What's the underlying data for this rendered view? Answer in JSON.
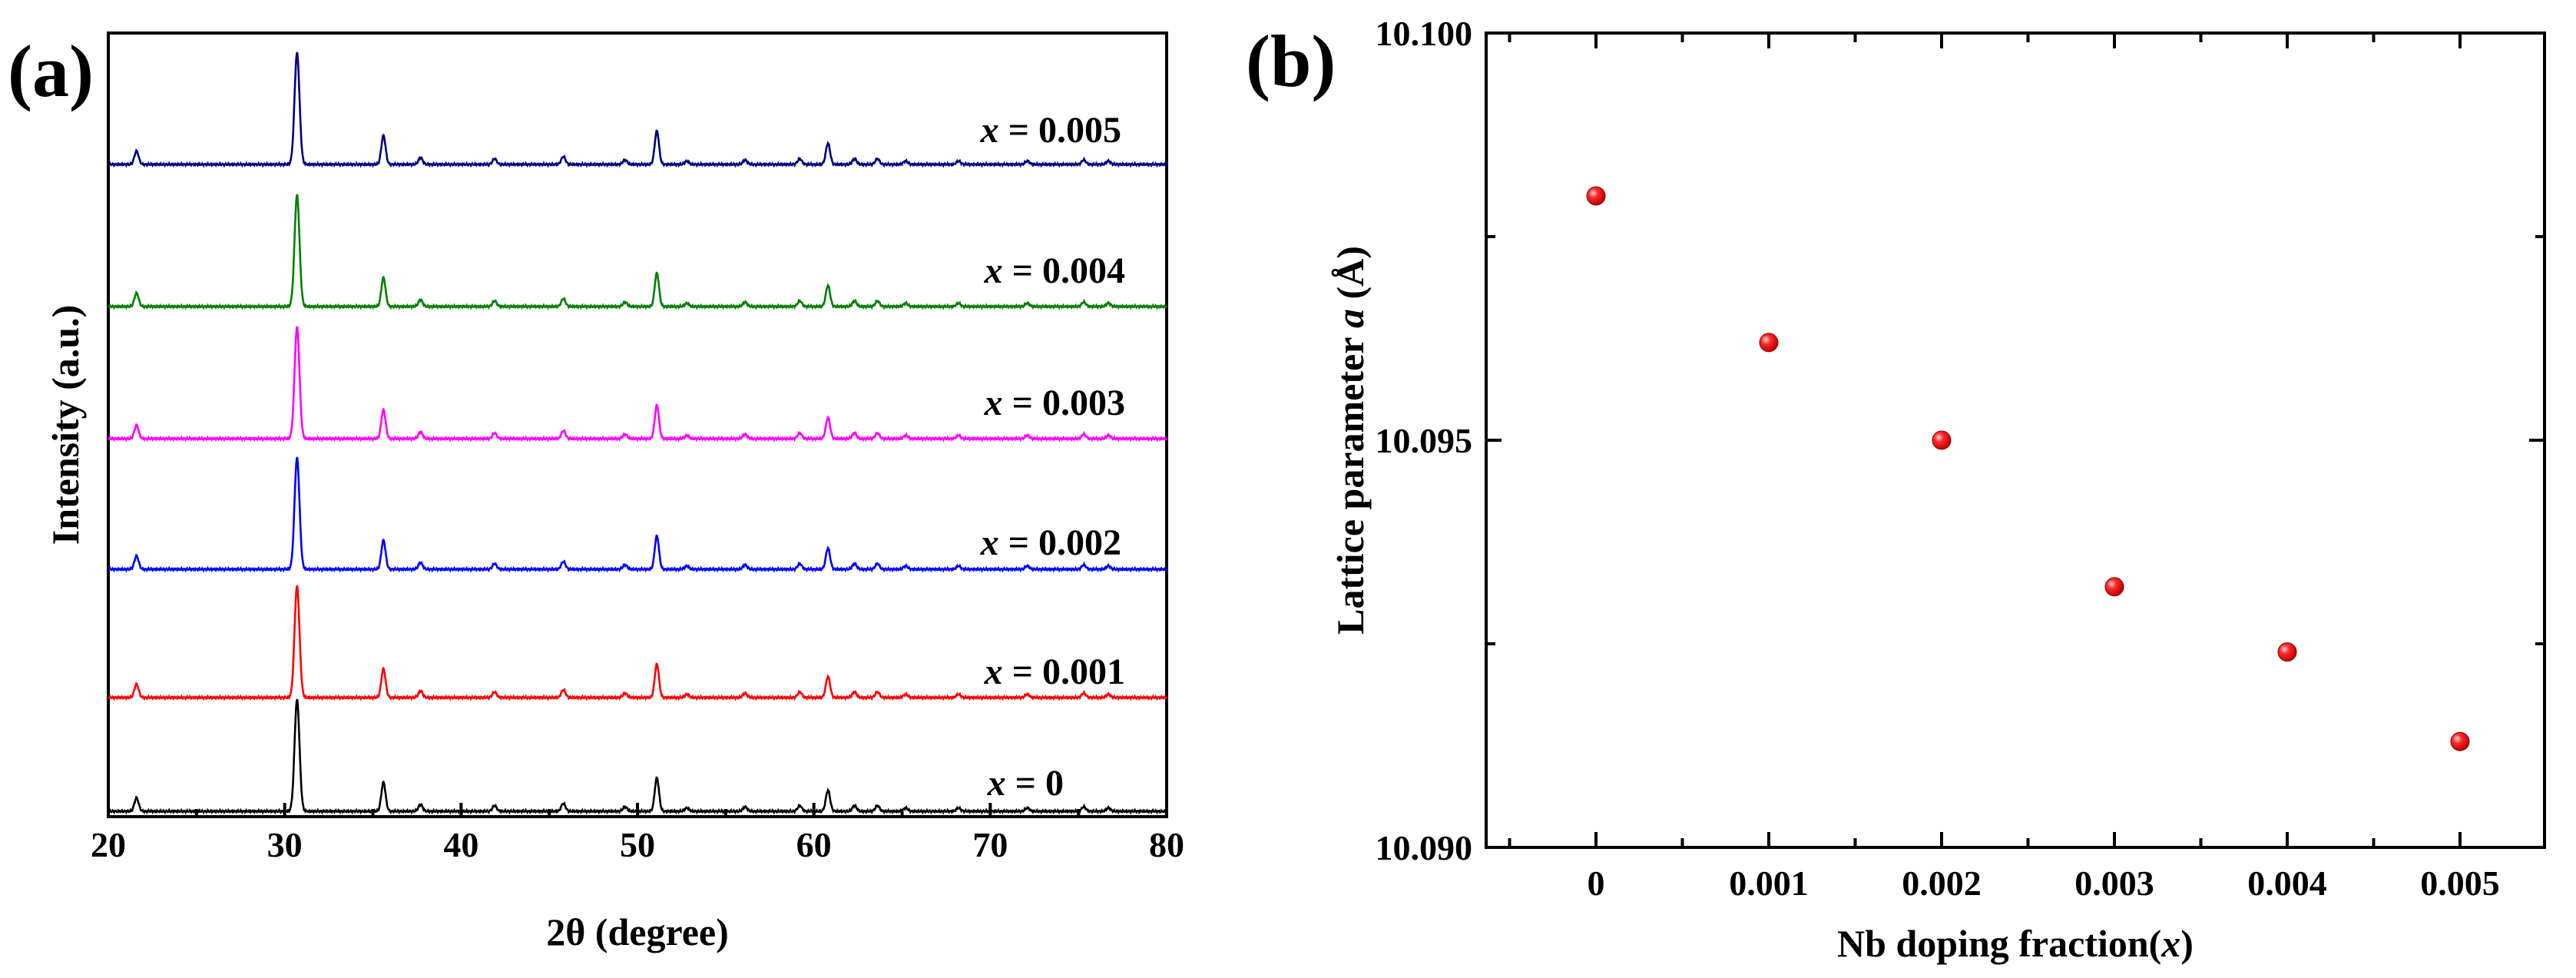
{
  "chart_data": [
    {
      "panel": "(a)",
      "type": "line",
      "xlabel": "2θ (degree)",
      "ylabel": "Intensity (a.u.)",
      "xlim": [
        20,
        80
      ],
      "xticks": [
        "20",
        "30",
        "40",
        "50",
        "60",
        "70",
        "80"
      ],
      "peaks": [
        {
          "x": 21.6,
          "rel": 0.12
        },
        {
          "x": 30.7,
          "rel": 1.0
        },
        {
          "x": 35.6,
          "rel": 0.26
        },
        {
          "x": 37.7,
          "rel": 0.06
        },
        {
          "x": 41.9,
          "rel": 0.05
        },
        {
          "x": 45.8,
          "rel": 0.07
        },
        {
          "x": 49.3,
          "rel": 0.04
        },
        {
          "x": 51.1,
          "rel": 0.3
        },
        {
          "x": 52.8,
          "rel": 0.03
        },
        {
          "x": 56.1,
          "rel": 0.04
        },
        {
          "x": 59.2,
          "rel": 0.05
        },
        {
          "x": 60.8,
          "rel": 0.19
        },
        {
          "x": 62.3,
          "rel": 0.05
        },
        {
          "x": 63.6,
          "rel": 0.05
        },
        {
          "x": 65.2,
          "rel": 0.03
        },
        {
          "x": 68.2,
          "rel": 0.03
        },
        {
          "x": 72.1,
          "rel": 0.03
        },
        {
          "x": 75.3,
          "rel": 0.04
        },
        {
          "x": 76.7,
          "rel": 0.03
        }
      ],
      "series": [
        {
          "name": "x = 0",
          "label_prefix": "x",
          "label_value": "= 0",
          "color": "#000000",
          "baseline_offset": 0,
          "scale": 1.0
        },
        {
          "name": "x = 0.001",
          "label_prefix": "x",
          "label_value": "= 0.001",
          "color": "#ff0000",
          "baseline_offset": 1,
          "scale": 1.0
        },
        {
          "name": "x = 0.002",
          "label_prefix": "x",
          "label_value": "= 0.002",
          "color": "#0000ff",
          "baseline_offset": 2,
          "scale": 1.0
        },
        {
          "name": "x = 0.003",
          "label_prefix": "x",
          "label_value": "= 0.003",
          "color": "#ff00ff",
          "baseline_offset": 3,
          "scale": 1.0
        },
        {
          "name": "x = 0.004",
          "label_prefix": "x",
          "label_value": "= 0.004",
          "color": "#008000",
          "baseline_offset": 4,
          "scale": 1.0
        },
        {
          "name": "x = 0.005",
          "label_prefix": "x",
          "label_value": "= 0.005",
          "color": "#000080",
          "baseline_offset": 5,
          "scale": 1.0
        }
      ]
    },
    {
      "panel": "(b)",
      "type": "scatter",
      "xlabel": "Nb doping fraction(",
      "xlabel_italic": "x",
      "xlabel_suffix": ")",
      "ylabel": "Lattice parameter ",
      "ylabel_italic": "a",
      "ylabel_suffix": " (Å)",
      "categories": [
        "0",
        "0.001",
        "0.002",
        "0.003",
        "0.004",
        "0.005"
      ],
      "values": [
        10.098,
        10.0962,
        10.095,
        10.0932,
        10.0924,
        10.0913
      ],
      "ylim": [
        10.09,
        10.1
      ],
      "yticks": [
        "10.090",
        "10.095",
        "10.100"
      ],
      "marker_color": "#ff0000"
    }
  ]
}
